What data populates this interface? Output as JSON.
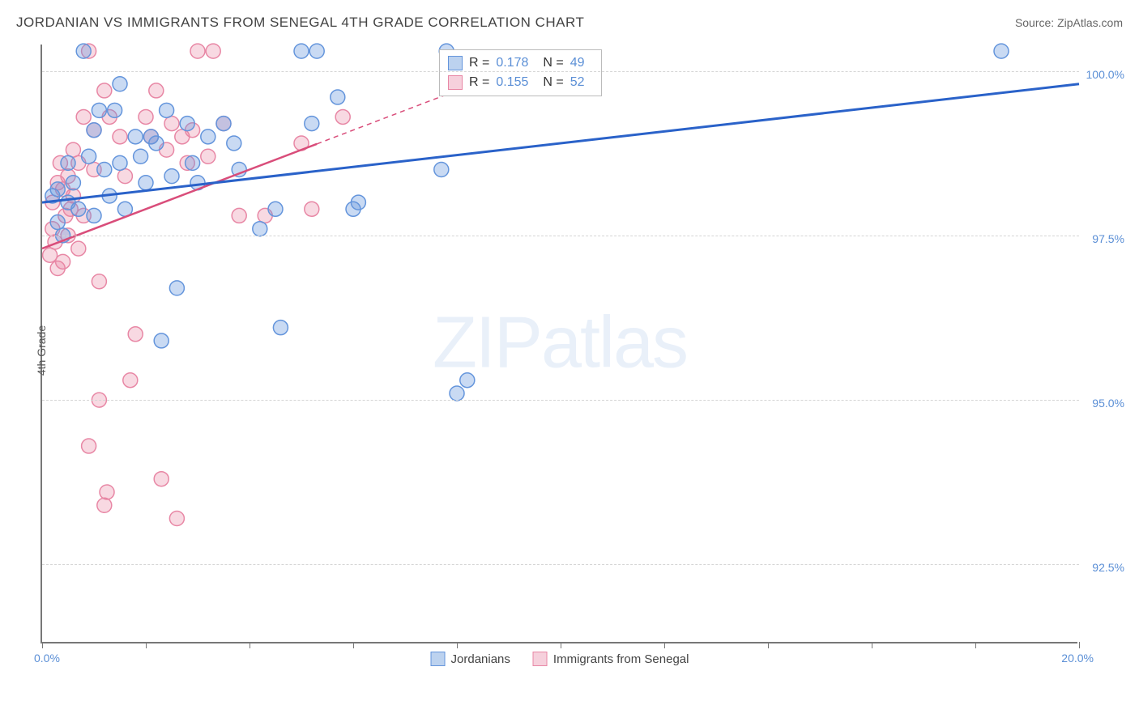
{
  "header": {
    "title": "JORDANIAN VS IMMIGRANTS FROM SENEGAL 4TH GRADE CORRELATION CHART",
    "source_label": "Source: ",
    "source_value": "ZipAtlas.com"
  },
  "chart": {
    "type": "scatter",
    "y_axis_label": "4th Grade",
    "x_range": [
      0.0,
      20.0
    ],
    "y_range": [
      91.3,
      100.4
    ],
    "y_ticks": [
      92.5,
      95.0,
      97.5,
      100.0
    ],
    "y_tick_labels": [
      "92.5%",
      "95.0%",
      "97.5%",
      "100.0%"
    ],
    "x_ticks": [
      0,
      2,
      4,
      6,
      8,
      10,
      12,
      14,
      16,
      18,
      20
    ],
    "x_end_labels": {
      "start": "0.0%",
      "end": "20.0%"
    },
    "background_color": "#ffffff",
    "grid_color": "#d5d5d5",
    "axis_color": "#777777",
    "watermark_zip": "ZIP",
    "watermark_atlas": "atlas",
    "series": {
      "jordanians": {
        "label": "Jordanians",
        "color_fill": "rgba(100,150,220,0.35)",
        "color_stroke": "#6495dc",
        "trend_color": "#2a62c9",
        "swatch_fill": "#bcd2ef",
        "swatch_border": "#6495dc",
        "R": "0.178",
        "N": "49",
        "marker_radius": 9,
        "trend": {
          "x1": 0.0,
          "y1": 98.0,
          "x2": 20.0,
          "y2": 99.8,
          "dash_after_x": null
        },
        "points": [
          [
            0.2,
            98.1
          ],
          [
            0.3,
            97.7
          ],
          [
            0.3,
            98.2
          ],
          [
            0.4,
            97.5
          ],
          [
            0.5,
            98.6
          ],
          [
            0.5,
            98.0
          ],
          [
            0.6,
            98.3
          ],
          [
            0.7,
            97.9
          ],
          [
            0.8,
            100.3
          ],
          [
            0.9,
            98.7
          ],
          [
            1.0,
            99.1
          ],
          [
            1.0,
            97.8
          ],
          [
            1.1,
            99.4
          ],
          [
            1.2,
            98.5
          ],
          [
            1.3,
            98.1
          ],
          [
            1.4,
            99.4
          ],
          [
            1.5,
            98.6
          ],
          [
            1.5,
            99.8
          ],
          [
            1.6,
            97.9
          ],
          [
            1.8,
            99.0
          ],
          [
            1.9,
            98.7
          ],
          [
            2.0,
            98.3
          ],
          [
            2.1,
            99.0
          ],
          [
            2.2,
            98.9
          ],
          [
            2.3,
            95.9
          ],
          [
            2.4,
            99.4
          ],
          [
            2.5,
            98.4
          ],
          [
            2.6,
            96.7
          ],
          [
            2.8,
            99.2
          ],
          [
            2.9,
            98.6
          ],
          [
            3.0,
            98.3
          ],
          [
            3.2,
            99.0
          ],
          [
            3.5,
            99.2
          ],
          [
            3.7,
            98.9
          ],
          [
            3.8,
            98.5
          ],
          [
            4.2,
            97.6
          ],
          [
            4.5,
            97.9
          ],
          [
            4.6,
            96.1
          ],
          [
            5.0,
            100.3
          ],
          [
            5.2,
            99.2
          ],
          [
            5.3,
            100.3
          ],
          [
            5.7,
            99.6
          ],
          [
            6.0,
            97.9
          ],
          [
            6.1,
            98.0
          ],
          [
            7.7,
            98.5
          ],
          [
            7.8,
            100.3
          ],
          [
            8.0,
            95.1
          ],
          [
            8.2,
            95.3
          ],
          [
            18.5,
            100.3
          ]
        ]
      },
      "senegal": {
        "label": "Immigrants from Senegal",
        "color_fill": "rgba(231,130,160,0.30)",
        "color_stroke": "#e887a5",
        "trend_color": "#d94d7a",
        "swatch_fill": "#f6d0dc",
        "swatch_border": "#e887a5",
        "R": "0.155",
        "N": "52",
        "marker_radius": 9,
        "trend": {
          "x1": 0.0,
          "y1": 97.3,
          "x2": 10.0,
          "y2": 100.3,
          "dash_after_x": 5.3
        },
        "points": [
          [
            0.15,
            97.2
          ],
          [
            0.2,
            97.6
          ],
          [
            0.2,
            98.0
          ],
          [
            0.25,
            97.4
          ],
          [
            0.3,
            97.0
          ],
          [
            0.3,
            98.3
          ],
          [
            0.35,
            98.6
          ],
          [
            0.4,
            97.1
          ],
          [
            0.4,
            98.2
          ],
          [
            0.45,
            97.8
          ],
          [
            0.5,
            98.4
          ],
          [
            0.5,
            97.5
          ],
          [
            0.55,
            97.9
          ],
          [
            0.6,
            98.8
          ],
          [
            0.6,
            98.1
          ],
          [
            0.7,
            98.6
          ],
          [
            0.7,
            97.3
          ],
          [
            0.8,
            99.3
          ],
          [
            0.8,
            97.8
          ],
          [
            0.9,
            100.3
          ],
          [
            0.9,
            94.3
          ],
          [
            1.0,
            99.1
          ],
          [
            1.0,
            98.5
          ],
          [
            1.1,
            96.8
          ],
          [
            1.1,
            95.0
          ],
          [
            1.2,
            99.7
          ],
          [
            1.2,
            93.4
          ],
          [
            1.25,
            93.6
          ],
          [
            1.3,
            99.3
          ],
          [
            1.5,
            99.0
          ],
          [
            1.6,
            98.4
          ],
          [
            1.7,
            95.3
          ],
          [
            1.8,
            96.0
          ],
          [
            2.0,
            99.3
          ],
          [
            2.1,
            99.0
          ],
          [
            2.2,
            99.7
          ],
          [
            2.3,
            93.8
          ],
          [
            2.4,
            98.8
          ],
          [
            2.5,
            99.2
          ],
          [
            2.6,
            93.2
          ],
          [
            2.7,
            99.0
          ],
          [
            2.8,
            98.6
          ],
          [
            2.9,
            99.1
          ],
          [
            3.0,
            100.3
          ],
          [
            3.2,
            98.7
          ],
          [
            3.3,
            100.3
          ],
          [
            3.5,
            99.2
          ],
          [
            3.8,
            97.8
          ],
          [
            4.3,
            97.8
          ],
          [
            5.0,
            98.9
          ],
          [
            5.2,
            97.9
          ],
          [
            5.8,
            99.3
          ]
        ]
      }
    },
    "legend_bottom": [
      {
        "key": "jordanians"
      },
      {
        "key": "senegal"
      }
    ],
    "stats_labels": {
      "R": "R =",
      "N": "N ="
    }
  }
}
